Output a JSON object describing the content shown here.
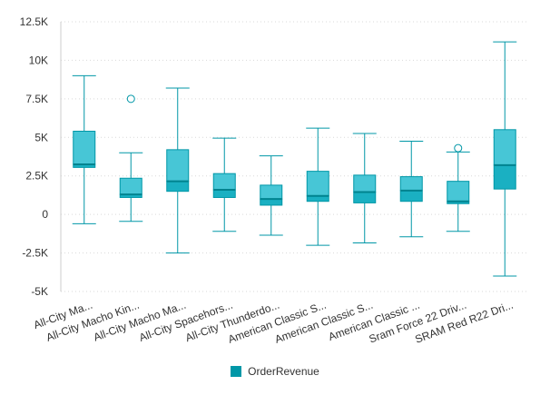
{
  "chart_data": {
    "type": "boxplot",
    "title": "",
    "xlabel": "",
    "ylabel": "",
    "ylim": [
      -5000,
      12500
    ],
    "y_ticks": [
      {
        "value": -5000,
        "label": "-5K"
      },
      {
        "value": -2500,
        "label": "-2.5K"
      },
      {
        "value": 0,
        "label": "0"
      },
      {
        "value": 2500,
        "label": "2.5K"
      },
      {
        "value": 5000,
        "label": "5K"
      },
      {
        "value": 7500,
        "label": "7.5K"
      },
      {
        "value": 10000,
        "label": "10K"
      },
      {
        "value": 12500,
        "label": "12.5K"
      }
    ],
    "grid": true,
    "legend_position": "bottom",
    "categories": [
      "All-City Ma...",
      "All-City Macho Kin...",
      "All-City Macho Ma...",
      "All-City Spacehors...",
      "All-City Thunderdo...",
      "American Classic S...",
      "American Classic S...",
      "American Classic ...",
      "Sram Force 22 Driv...",
      "SRAM Red R22 Dri..."
    ],
    "series": [
      {
        "name": "OrderRevenue",
        "color": "#0097a7",
        "box_color": "#47c6d6",
        "boxes": [
          {
            "min": -600,
            "q1": 3050,
            "median": 3250,
            "q3": 5400,
            "max": 9000,
            "outliers": []
          },
          {
            "min": -450,
            "q1": 1100,
            "median": 1300,
            "q3": 2350,
            "max": 4000,
            "outliers": [
              7500
            ]
          },
          {
            "min": -2500,
            "q1": 1500,
            "median": 2150,
            "q3": 4200,
            "max": 8200,
            "outliers": []
          },
          {
            "min": -1100,
            "q1": 1100,
            "median": 1600,
            "q3": 2650,
            "max": 4950,
            "outliers": []
          },
          {
            "min": -1350,
            "q1": 600,
            "median": 1000,
            "q3": 1900,
            "max": 3800,
            "outliers": []
          },
          {
            "min": -2000,
            "q1": 850,
            "median": 1200,
            "q3": 2800,
            "max": 5600,
            "outliers": []
          },
          {
            "min": -1850,
            "q1": 750,
            "median": 1450,
            "q3": 2550,
            "max": 5250,
            "outliers": []
          },
          {
            "min": -1450,
            "q1": 850,
            "median": 1550,
            "q3": 2450,
            "max": 4750,
            "outliers": []
          },
          {
            "min": -1100,
            "q1": 700,
            "median": 850,
            "q3": 2150,
            "max": 4050,
            "outliers": [
              4300
            ]
          },
          {
            "min": -4000,
            "q1": 1650,
            "median": 3200,
            "q3": 5500,
            "max": 11200,
            "outliers": []
          }
        ]
      }
    ]
  }
}
